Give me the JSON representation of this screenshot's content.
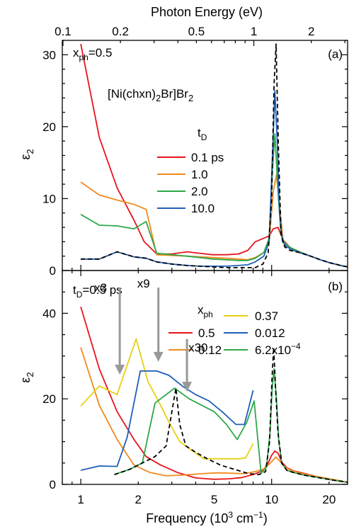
{
  "chart_data": [
    {
      "type": "line",
      "panel_label": "(a)",
      "corner_text": "x_ph=0.5",
      "compound_label": "[Ni(chxn)2Br]Br2",
      "legend_title": "t_D",
      "top_axis_label": "Photon Energy (eV)",
      "top_ticks": [
        "0.1",
        "0.2",
        "0.5",
        "1",
        "2"
      ],
      "ylabel": "ε2",
      "ylim": [
        0,
        32
      ],
      "y_ticks": [
        "0",
        "10",
        "20",
        "30"
      ],
      "x_unit": "10^3 cm^-1",
      "xlim": [
        0.8,
        25
      ],
      "series": [
        {
          "name": "0.1 ps",
          "color": "#e8141c",
          "x": [
            1.0,
            1.25,
            1.55,
            1.9,
            2.15,
            2.5,
            3.0,
            3.6,
            4.2,
            4.9,
            5.8,
            6.7,
            7.5,
            8.2,
            9.1,
            9.7,
            10.2,
            10.8,
            11.5,
            12.5,
            14,
            16,
            18,
            20,
            23,
            25
          ],
          "y": [
            31.5,
            18.5,
            11.5,
            7,
            4,
            2.3,
            2.3,
            2.6,
            2.4,
            2.2,
            2.2,
            2.3,
            2.8,
            4,
            4.5,
            4.8,
            5.8,
            6,
            4.2,
            3.2,
            2.5,
            2,
            1.5,
            1.1,
            0.7,
            0.5
          ]
        },
        {
          "name": "1.0",
          "color": "#f28a1e",
          "x": [
            1.0,
            1.25,
            1.55,
            1.9,
            2.2,
            2.5,
            3.0,
            3.6,
            4.2,
            4.9,
            5.8,
            6.7,
            7.5,
            8.2,
            9.1,
            9.7,
            10.2,
            10.6,
            11.0,
            11.5,
            12.5,
            14,
            16,
            18,
            20,
            23,
            25
          ],
          "y": [
            12.3,
            10.5,
            9.8,
            9.2,
            8.5,
            2.2,
            2.1,
            2.0,
            1.9,
            1.8,
            1.7,
            1.6,
            1.5,
            1.8,
            2.5,
            4,
            11,
            13.3,
            9,
            4,
            3.2,
            2.6,
            2,
            1.5,
            1.1,
            0.7,
            0.5
          ]
        },
        {
          "name": "2.0",
          "color": "#2ea84a",
          "x": [
            1.0,
            1.25,
            1.55,
            1.9,
            2.2,
            2.5,
            3.0,
            3.6,
            4.2,
            4.9,
            5.8,
            6.7,
            7.5,
            8.2,
            9.1,
            9.7,
            10.1,
            10.4,
            10.8,
            11.2,
            11.7,
            12.5,
            14,
            16,
            18,
            20,
            23,
            25
          ],
          "y": [
            7.8,
            6.3,
            6.2,
            5.8,
            6.8,
            2.4,
            2.2,
            2.0,
            1.8,
            1.6,
            1.5,
            1.4,
            1.4,
            1.7,
            2.5,
            4.5,
            14,
            19,
            11,
            5,
            3.8,
            3.2,
            2.6,
            2,
            1.5,
            1.1,
            0.7,
            0.5
          ]
        },
        {
          "name": "10.0",
          "color": "#1f5fb8",
          "x": [
            1.0,
            1.25,
            1.55,
            1.9,
            2.2,
            2.5,
            3.0,
            3.6,
            4.2,
            4.9,
            5.8,
            6.7,
            7.5,
            8.2,
            9.1,
            9.7,
            10.1,
            10.4,
            10.7,
            11.0,
            11.4,
            12,
            13,
            14,
            16,
            18,
            20,
            23,
            25
          ],
          "y": [
            1.6,
            1.6,
            2.6,
            1.9,
            1.7,
            1.2,
            0.9,
            0.7,
            0.6,
            0.6,
            0.6,
            0.7,
            0.8,
            1.2,
            2,
            4,
            16,
            25,
            18,
            8,
            4,
            3.3,
            2.8,
            2.5,
            2,
            1.5,
            1.1,
            0.7,
            0.5
          ]
        },
        {
          "name": "",
          "color": "#000000",
          "dashed": true,
          "x": [
            1.0,
            1.25,
            1.55,
            1.9,
            2.2,
            2.5,
            3.0,
            3.6,
            4.2,
            4.9,
            5.8,
            6.7,
            7.5,
            8.2,
            9.0,
            9.6,
            10.0,
            10.3,
            10.55,
            10.85,
            11.2,
            11.7,
            12.5,
            14,
            16,
            18,
            20,
            23,
            25
          ],
          "y": [
            1.6,
            1.6,
            2.6,
            1.9,
            1.7,
            1.2,
            0.9,
            0.7,
            0.6,
            0.5,
            0.4,
            0.4,
            0.4,
            0.4,
            0.9,
            2.5,
            10,
            26,
            31.5,
            17,
            5,
            3.3,
            2.8,
            2.5,
            2,
            1.5,
            1.1,
            0.7,
            0.5
          ]
        }
      ]
    },
    {
      "type": "line",
      "panel_label": "(b)",
      "corner_text": "t_D=0.5 ps",
      "legend_title": "x_ph",
      "xlabel": "Frequency (10^3 cm^-1)",
      "x_ticks": [
        "1",
        "2",
        "5",
        "10",
        "20"
      ],
      "ylabel": "ε2",
      "ylim": [
        0,
        50
      ],
      "y_ticks": [
        "0",
        "20",
        "40"
      ],
      "xlim": [
        0.8,
        25
      ],
      "annotations": [
        {
          "text": "x3",
          "x": 1.6,
          "arrow_from": 46,
          "arrow_to": 26
        },
        {
          "text": "x9",
          "x": 2.55,
          "arrow_from": 46,
          "arrow_to": 29
        },
        {
          "text": "x30",
          "x": 3.6,
          "arrow_from": 34,
          "arrow_to": 22
        }
      ],
      "series": [
        {
          "name": "0.5",
          "color": "#e8141c",
          "x": [
            1.0,
            1.25,
            1.55,
            1.9,
            2.2,
            2.6,
            3.2,
            4.0,
            5.0,
            6.0,
            7.0,
            8.0,
            9.0,
            9.6,
            10.0,
            10.4,
            10.8,
            11.3,
            12,
            13,
            15,
            18,
            21,
            25
          ],
          "y": [
            41.5,
            27,
            17,
            10.5,
            6.5,
            4.6,
            2.8,
            1.5,
            1.2,
            1.3,
            1.6,
            2.3,
            3.2,
            5,
            6.8,
            7.8,
            7.3,
            5.2,
            3.9,
            3.2,
            2.5,
            1.6,
            1.0,
            0.5
          ]
        },
        {
          "name": "0.12",
          "color": "#f28a1e",
          "x": [
            1.0,
            1.25,
            1.55,
            1.9,
            2.3,
            2.8,
            3.5,
            4.3,
            5.2,
            6.2,
            7.2,
            8.2,
            9.0,
            9.6,
            10.1,
            10.5,
            11.0,
            11.6,
            12.5,
            14,
            16,
            19,
            22,
            25
          ],
          "y": [
            32,
            18.5,
            10.5,
            4.5,
            2.8,
            2.0,
            2.2,
            2.5,
            2.7,
            2.6,
            2.5,
            3.0,
            3.5,
            4.5,
            5.5,
            6.4,
            5.5,
            4.2,
            3.4,
            2.7,
            2.1,
            1.5,
            1.0,
            0.5
          ]
        },
        {
          "name": "0.37",
          "color": "#e8d014",
          "x": [
            1.0,
            1.25,
            1.55,
            1.95,
            2.25,
            2.55,
            2.9,
            3.3,
            3.8,
            4.4,
            5.1,
            5.9,
            6.8,
            7.3,
            8.0
          ],
          "y": [
            18.3,
            23,
            21,
            34,
            24,
            19.5,
            14.5,
            10,
            8,
            6,
            6,
            6,
            6,
            6.2,
            9.5
          ]
        },
        {
          "name": "0.012",
          "color": "#1f5fb8",
          "x": [
            1.0,
            1.25,
            1.55,
            1.75,
            2.05,
            2.5,
            2.9,
            3.4,
            4.0,
            4.7,
            5.5,
            6.5,
            7.2,
            8.0
          ],
          "y": [
            3.3,
            4.3,
            4.2,
            11,
            26.5,
            26.5,
            25.5,
            23,
            21,
            19.5,
            17,
            14,
            14,
            22
          ]
        },
        {
          "name": "6.2x10^-4",
          "color": "#2ea84a",
          "x": [
            1.5,
            1.8,
            2.1,
            2.45,
            3.1,
            3.7,
            4.3,
            5.0,
            5.8,
            6.6,
            7.4,
            8.1,
            8.8,
            9.4,
            9.8,
            10.05,
            10.3,
            10.6,
            10.9,
            11.3,
            12,
            13,
            15,
            18,
            21,
            25
          ],
          "y": [
            2.3,
            3.5,
            5.0,
            19,
            22.5,
            20,
            18.5,
            17,
            14,
            10.5,
            14.5,
            19.5,
            2.6,
            4,
            12,
            22,
            27,
            20,
            10,
            5,
            3.3,
            2.8,
            2.1,
            1.5,
            1,
            0.5
          ]
        },
        {
          "name": "",
          "color": "#000000",
          "dashed": true,
          "x": [
            1.5,
            1.8,
            2.1,
            2.45,
            2.8,
            3.0,
            3.15,
            3.3,
            3.55,
            4.0,
            4.6,
            5.4,
            6.4,
            7.6,
            8.6,
            9.3,
            9.75,
            10.05,
            10.25,
            10.5,
            10.8,
            11.3,
            12,
            13,
            15,
            18,
            21,
            25
          ],
          "y": [
            2.3,
            3.5,
            5.0,
            6.5,
            9,
            17,
            22.5,
            14,
            9,
            7.5,
            6,
            4.5,
            3.5,
            2.5,
            2.3,
            3,
            10,
            25,
            32,
            22,
            12,
            5,
            3.3,
            2.8,
            2.1,
            1.5,
            1,
            0.5
          ]
        }
      ]
    }
  ]
}
